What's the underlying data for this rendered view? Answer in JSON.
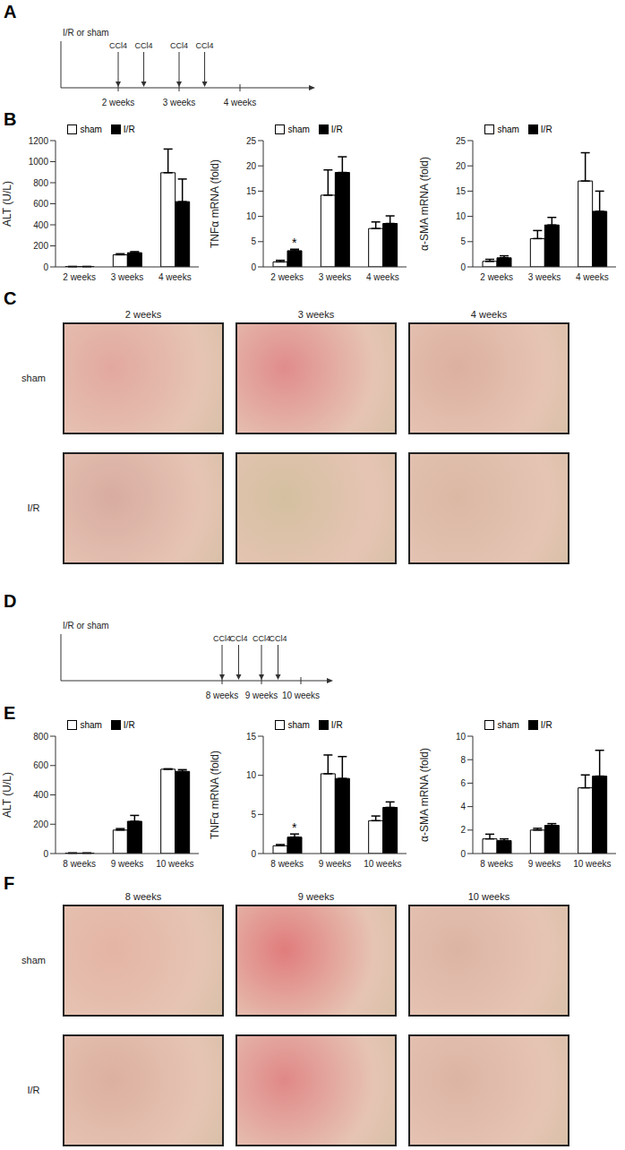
{
  "panel_labels": [
    "A",
    "B",
    "C",
    "D",
    "E",
    "F"
  ],
  "timelines": [
    {
      "start_label": "I/R or sham",
      "arrows": [
        "CCl4",
        "CCl4",
        "CCl4",
        "CCl4"
      ],
      "ticks": [
        "2 weeks",
        "3 weeks",
        "4 weeks"
      ]
    },
    {
      "start_label": "I/R or sham",
      "arrows": [
        "CCl4",
        "CCl4",
        "CCl4",
        "CCl4"
      ],
      "ticks": [
        "8 weeks",
        "9 weeks",
        "10 weeks"
      ]
    }
  ],
  "chart_data": [
    {
      "type": "bar",
      "y_label": "ALT (U/L)",
      "categories": [
        "2 weeks",
        "3 weeks",
        "4 weeks"
      ],
      "series": [
        {
          "name": "sham",
          "color": "#ffffff",
          "values": [
            3,
            115,
            895
          ],
          "errors": [
            1,
            10,
            225
          ]
        },
        {
          "name": "I/R",
          "color": "#000000",
          "values": [
            3,
            135,
            620
          ],
          "errors": [
            1,
            10,
            215
          ]
        }
      ],
      "ylim": [
        0,
        1200
      ],
      "yticks": [
        0,
        200,
        400,
        600,
        800,
        1000,
        1200
      ],
      "legend": "top"
    },
    {
      "type": "bar",
      "y_label": "TNFα mRNA (fold)",
      "categories": [
        "2 weeks",
        "3 weeks",
        "4 weeks"
      ],
      "series": [
        {
          "name": "sham",
          "color": "#ffffff",
          "values": [
            1,
            14.2,
            7.6
          ],
          "errors": [
            0.3,
            5,
            1.3
          ]
        },
        {
          "name": "I/R",
          "color": "#000000",
          "values": [
            3.2,
            18.7,
            8.6
          ],
          "errors": [
            0.3,
            3.1,
            1.5
          ]
        }
      ],
      "ylim": [
        0,
        25
      ],
      "yticks": [
        0,
        5,
        10,
        15,
        20,
        25
      ],
      "legend": "top",
      "annotations": [
        {
          "text": "*",
          "category": "2 weeks",
          "series": "I/R"
        }
      ]
    },
    {
      "type": "bar",
      "y_label": "α-SMA mRNA (fold)",
      "categories": [
        "2 weeks",
        "3 weeks",
        "4 weeks"
      ],
      "series": [
        {
          "name": "sham",
          "color": "#ffffff",
          "values": [
            1.1,
            5.6,
            17
          ],
          "errors": [
            0.4,
            1.6,
            5.6
          ]
        },
        {
          "name": "I/R",
          "color": "#000000",
          "values": [
            1.8,
            8.3,
            11
          ],
          "errors": [
            0.4,
            1.5,
            4
          ]
        }
      ],
      "ylim": [
        0,
        25
      ],
      "yticks": [
        0,
        5,
        10,
        15,
        20,
        25
      ],
      "legend": "top"
    },
    {
      "type": "bar",
      "y_label": "ALT (U/L)",
      "categories": [
        "8 weeks",
        "9 weeks",
        "10 weeks"
      ],
      "series": [
        {
          "name": "sham",
          "color": "#ffffff",
          "values": [
            3,
            160,
            575
          ],
          "errors": [
            1,
            10,
            3
          ]
        },
        {
          "name": "I/R",
          "color": "#000000",
          "values": [
            3,
            220,
            560
          ],
          "errors": [
            1,
            40,
            12
          ]
        }
      ],
      "ylim": [
        0,
        800
      ],
      "yticks": [
        0,
        200,
        400,
        600,
        800
      ],
      "legend": "top"
    },
    {
      "type": "bar",
      "y_label": "TNFα mRNA (fold)",
      "categories": [
        "8 weeks",
        "9 weeks",
        "10 weeks"
      ],
      "series": [
        {
          "name": "sham",
          "color": "#ffffff",
          "values": [
            1,
            10.2,
            4.2
          ],
          "errors": [
            0.15,
            2.4,
            0.6
          ]
        },
        {
          "name": "I/R",
          "color": "#000000",
          "values": [
            2.1,
            9.6,
            5.9
          ],
          "errors": [
            0.4,
            2.8,
            0.7
          ]
        }
      ],
      "ylim": [
        0,
        15
      ],
      "yticks": [
        0,
        5,
        10,
        15
      ],
      "legend": "top",
      "annotations": [
        {
          "text": "*",
          "category": "8 weeks",
          "series": "I/R"
        }
      ]
    },
    {
      "type": "bar",
      "y_label": "α-SMA mRNA (fold)",
      "categories": [
        "8 weeks",
        "9 weeks",
        "10 weeks"
      ],
      "series": [
        {
          "name": "sham",
          "color": "#ffffff",
          "values": [
            1.25,
            2.0,
            5.6
          ],
          "errors": [
            0.4,
            0.15,
            1.1
          ]
        },
        {
          "name": "I/R",
          "color": "#000000",
          "values": [
            1.1,
            2.4,
            6.6
          ],
          "errors": [
            0.15,
            0.15,
            2.2
          ]
        }
      ],
      "ylim": [
        0,
        10
      ],
      "yticks": [
        0,
        2,
        4,
        6,
        8,
        10
      ],
      "legend": "top"
    }
  ],
  "image_grids": [
    {
      "columns": [
        "2 weeks",
        "3 weeks",
        "4 weeks"
      ],
      "rows": [
        "sham",
        "I/R"
      ]
    },
    {
      "columns": [
        "8 weeks",
        "9 weeks",
        "10 weeks"
      ],
      "rows": [
        "sham",
        "I/R"
      ]
    }
  ]
}
